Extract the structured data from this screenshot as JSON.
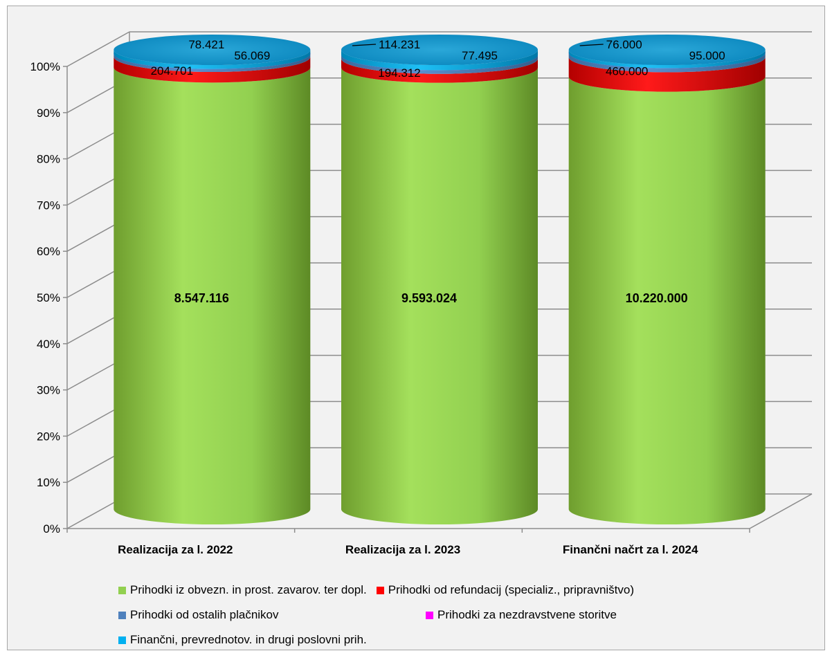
{
  "chart_data": {
    "type": "bar",
    "stacked": "percent",
    "shape": "3d-cylinder",
    "categories": [
      "Realizacija za l. 2022",
      "Realizacija za l. 2023",
      "Finančni načrt za l. 2024"
    ],
    "series": [
      {
        "name": "Prihodki iz obvezn. in prost. zavarov. ter dopl.",
        "color": "#92d050",
        "values": [
          8547116,
          9593024,
          10220000
        ],
        "labels": [
          "8.547.116",
          "9.593.024",
          "10.220.000"
        ]
      },
      {
        "name": "Prihodki od refundacij (specializ., pripravništvo)",
        "color": "#ff0000",
        "values": [
          204701,
          194312,
          460000
        ],
        "labels": [
          "204.701",
          "194.312",
          "460.000"
        ]
      },
      {
        "name": "Prihodki od ostalih plačnikov",
        "color": "#4f81bd",
        "values": [
          56069,
          77495,
          95000
        ],
        "labels": [
          "56.069",
          "77.495",
          "95.000"
        ]
      },
      {
        "name": "Prihodki za nezdravstvene storitve",
        "color": "#ff00ff",
        "values": [
          0,
          0,
          0
        ],
        "labels": [
          "",
          "",
          ""
        ]
      },
      {
        "name": "Finančni, prevrednotov. in drugi poslovni prih.",
        "color": "#00b0f0",
        "values": [
          78421,
          114231,
          76000
        ],
        "labels": [
          "78.421",
          "114.231",
          "76.000"
        ]
      }
    ],
    "yticks": [
      "0%",
      "10%",
      "20%",
      "30%",
      "40%",
      "50%",
      "60%",
      "70%",
      "80%",
      "90%",
      "100%"
    ],
    "ylim": [
      0,
      100
    ],
    "grid": true,
    "legend": "bottom"
  }
}
